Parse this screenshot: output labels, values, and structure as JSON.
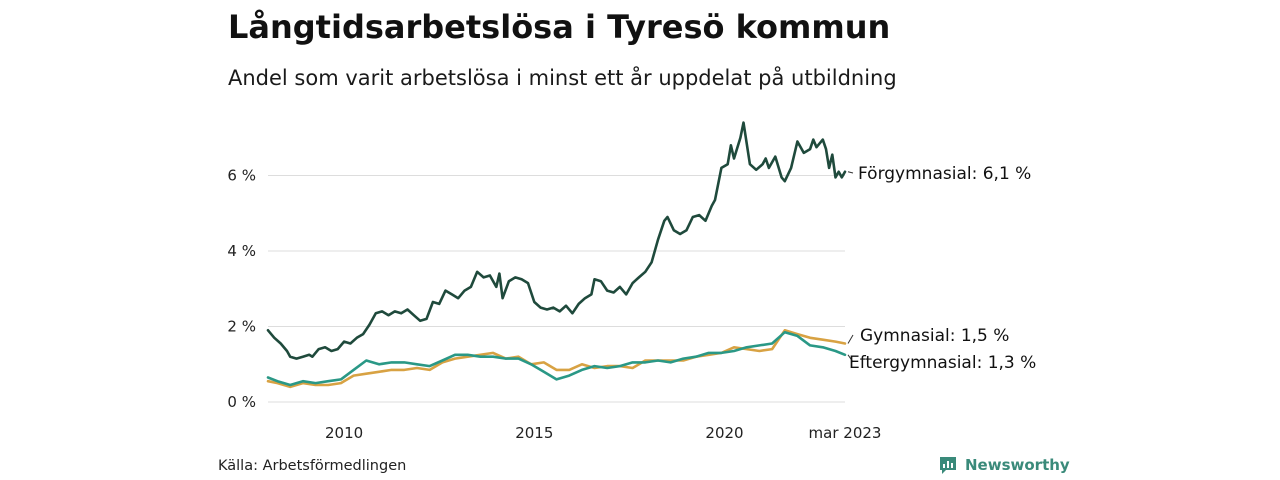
{
  "title": "Långtidsarbetslösa i Tyresö kommun",
  "subtitle": "Andel som varit arbetslösa i minst ett år uppdelat på utbildning",
  "source": "Källa: Arbetsförmedlingen",
  "brand": "Newsworthy",
  "colors": {
    "forgymnasial": "#1f4a3c",
    "gymnasial": "#d8a243",
    "eftergymnasial": "#2a9886",
    "grid": "#dddddd",
    "brand": "#3a8a7a"
  },
  "chart_data": {
    "type": "line",
    "title": "Långtidsarbetslösa i Tyresö kommun",
    "subtitle": "Andel som varit arbetslösa i minst ett år uppdelat på utbildning",
    "xlabel": "",
    "ylabel": "",
    "x_range": [
      "2008-01",
      "2023-03"
    ],
    "ylim": [
      0,
      7.4
    ],
    "y_ticks": [
      0,
      2,
      4,
      6
    ],
    "y_tick_labels": [
      "0 %",
      "2 %",
      "4 %",
      "6 %"
    ],
    "x_ticks": [
      "2010-01",
      "2015-01",
      "2020-01",
      "2023-03"
    ],
    "x_tick_labels": [
      "2010",
      "2015",
      "2020",
      "mar 2023"
    ],
    "grid": "horizontal",
    "legend": "end labels",
    "series": [
      {
        "name": "Förgymnasial",
        "label": "Förgymnasial: 6,1 %",
        "color": "#1f4a3c",
        "points": [
          [
            "2008-01",
            1.9
          ],
          [
            "2008-03",
            1.7
          ],
          [
            "2008-05",
            1.55
          ],
          [
            "2008-07",
            1.35
          ],
          [
            "2008-08",
            1.2
          ],
          [
            "2008-10",
            1.15
          ],
          [
            "2008-12",
            1.2
          ],
          [
            "2009-02",
            1.25
          ],
          [
            "2009-03",
            1.2
          ],
          [
            "2009-05",
            1.4
          ],
          [
            "2009-07",
            1.45
          ],
          [
            "2009-09",
            1.35
          ],
          [
            "2009-11",
            1.4
          ],
          [
            "2010-01",
            1.6
          ],
          [
            "2010-03",
            1.55
          ],
          [
            "2010-05",
            1.7
          ],
          [
            "2010-07",
            1.8
          ],
          [
            "2010-09",
            2.05
          ],
          [
            "2010-11",
            2.35
          ],
          [
            "2011-01",
            2.4
          ],
          [
            "2011-03",
            2.3
          ],
          [
            "2011-05",
            2.4
          ],
          [
            "2011-07",
            2.35
          ],
          [
            "2011-09",
            2.45
          ],
          [
            "2011-11",
            2.3
          ],
          [
            "2012-01",
            2.15
          ],
          [
            "2012-03",
            2.2
          ],
          [
            "2012-05",
            2.65
          ],
          [
            "2012-07",
            2.6
          ],
          [
            "2012-09",
            2.95
          ],
          [
            "2012-11",
            2.85
          ],
          [
            "2013-01",
            2.75
          ],
          [
            "2013-03",
            2.95
          ],
          [
            "2013-05",
            3.05
          ],
          [
            "2013-07",
            3.45
          ],
          [
            "2013-09",
            3.3
          ],
          [
            "2013-11",
            3.35
          ],
          [
            "2014-01",
            3.05
          ],
          [
            "2014-02",
            3.4
          ],
          [
            "2014-03",
            2.75
          ],
          [
            "2014-05",
            3.2
          ],
          [
            "2014-07",
            3.3
          ],
          [
            "2014-09",
            3.25
          ],
          [
            "2014-11",
            3.15
          ],
          [
            "2015-01",
            2.65
          ],
          [
            "2015-03",
            2.5
          ],
          [
            "2015-05",
            2.45
          ],
          [
            "2015-07",
            2.5
          ],
          [
            "2015-09",
            2.4
          ],
          [
            "2015-11",
            2.55
          ],
          [
            "2016-01",
            2.35
          ],
          [
            "2016-03",
            2.6
          ],
          [
            "2016-05",
            2.75
          ],
          [
            "2016-07",
            2.85
          ],
          [
            "2016-08",
            3.25
          ],
          [
            "2016-10",
            3.2
          ],
          [
            "2016-12",
            2.95
          ],
          [
            "2017-02",
            2.9
          ],
          [
            "2017-04",
            3.05
          ],
          [
            "2017-06",
            2.85
          ],
          [
            "2017-08",
            3.15
          ],
          [
            "2017-10",
            3.3
          ],
          [
            "2017-12",
            3.45
          ],
          [
            "2018-02",
            3.7
          ],
          [
            "2018-04",
            4.3
          ],
          [
            "2018-06",
            4.8
          ],
          [
            "2018-07",
            4.9
          ],
          [
            "2018-09",
            4.55
          ],
          [
            "2018-11",
            4.45
          ],
          [
            "2019-01",
            4.55
          ],
          [
            "2019-03",
            4.9
          ],
          [
            "2019-05",
            4.95
          ],
          [
            "2019-07",
            4.8
          ],
          [
            "2019-09",
            5.2
          ],
          [
            "2019-10",
            5.35
          ],
          [
            "2019-12",
            6.2
          ],
          [
            "2020-02",
            6.3
          ],
          [
            "2020-03",
            6.8
          ],
          [
            "2020-04",
            6.45
          ],
          [
            "2020-06",
            7.0
          ],
          [
            "2020-07",
            7.4
          ],
          [
            "2020-09",
            6.3
          ],
          [
            "2020-11",
            6.15
          ],
          [
            "2021-01",
            6.3
          ],
          [
            "2021-02",
            6.45
          ],
          [
            "2021-03",
            6.2
          ],
          [
            "2021-05",
            6.5
          ],
          [
            "2021-07",
            5.95
          ],
          [
            "2021-08",
            5.85
          ],
          [
            "2021-10",
            6.2
          ],
          [
            "2021-12",
            6.9
          ],
          [
            "2022-02",
            6.6
          ],
          [
            "2022-04",
            6.7
          ],
          [
            "2022-05",
            6.95
          ],
          [
            "2022-06",
            6.75
          ],
          [
            "2022-08",
            6.95
          ],
          [
            "2022-09",
            6.7
          ],
          [
            "2022-10",
            6.2
          ],
          [
            "2022-11",
            6.55
          ],
          [
            "2022-12",
            5.95
          ],
          [
            "2023-01",
            6.1
          ],
          [
            "2023-02",
            5.95
          ],
          [
            "2023-03",
            6.1
          ]
        ]
      },
      {
        "name": "Gymnasial",
        "label": "Gymnasial: 1,5 %",
        "color": "#d8a243",
        "points": [
          [
            "2008-01",
            0.55
          ],
          [
            "2008-04",
            0.5
          ],
          [
            "2008-08",
            0.4
          ],
          [
            "2008-12",
            0.5
          ],
          [
            "2009-04",
            0.45
          ],
          [
            "2009-08",
            0.45
          ],
          [
            "2009-12",
            0.5
          ],
          [
            "2010-04",
            0.7
          ],
          [
            "2010-08",
            0.75
          ],
          [
            "2010-12",
            0.8
          ],
          [
            "2011-04",
            0.85
          ],
          [
            "2011-08",
            0.85
          ],
          [
            "2011-12",
            0.9
          ],
          [
            "2012-04",
            0.85
          ],
          [
            "2012-08",
            1.05
          ],
          [
            "2012-12",
            1.15
          ],
          [
            "2013-04",
            1.2
          ],
          [
            "2013-08",
            1.25
          ],
          [
            "2013-12",
            1.3
          ],
          [
            "2014-04",
            1.15
          ],
          [
            "2014-08",
            1.2
          ],
          [
            "2014-12",
            1.0
          ],
          [
            "2015-04",
            1.05
          ],
          [
            "2015-08",
            0.85
          ],
          [
            "2015-12",
            0.85
          ],
          [
            "2016-04",
            1.0
          ],
          [
            "2016-08",
            0.9
          ],
          [
            "2016-12",
            0.95
          ],
          [
            "2017-04",
            0.95
          ],
          [
            "2017-08",
            0.9
          ],
          [
            "2017-12",
            1.1
          ],
          [
            "2018-04",
            1.1
          ],
          [
            "2018-08",
            1.1
          ],
          [
            "2018-12",
            1.1
          ],
          [
            "2019-04",
            1.2
          ],
          [
            "2019-08",
            1.25
          ],
          [
            "2019-12",
            1.3
          ],
          [
            "2020-04",
            1.45
          ],
          [
            "2020-08",
            1.4
          ],
          [
            "2020-12",
            1.35
          ],
          [
            "2021-04",
            1.4
          ],
          [
            "2021-08",
            1.9
          ],
          [
            "2021-12",
            1.8
          ],
          [
            "2022-04",
            1.7
          ],
          [
            "2022-08",
            1.65
          ],
          [
            "2022-12",
            1.6
          ],
          [
            "2023-03",
            1.55
          ]
        ]
      },
      {
        "name": "Eftergymnasial",
        "label": "Eftergymnasial: 1,3 %",
        "color": "#2a9886",
        "points": [
          [
            "2008-01",
            0.65
          ],
          [
            "2008-04",
            0.55
          ],
          [
            "2008-08",
            0.45
          ],
          [
            "2008-12",
            0.55
          ],
          [
            "2009-04",
            0.5
          ],
          [
            "2009-08",
            0.55
          ],
          [
            "2009-12",
            0.6
          ],
          [
            "2010-04",
            0.85
          ],
          [
            "2010-08",
            1.1
          ],
          [
            "2010-12",
            1.0
          ],
          [
            "2011-04",
            1.05
          ],
          [
            "2011-08",
            1.05
          ],
          [
            "2011-12",
            1.0
          ],
          [
            "2012-04",
            0.95
          ],
          [
            "2012-08",
            1.1
          ],
          [
            "2012-12",
            1.25
          ],
          [
            "2013-04",
            1.25
          ],
          [
            "2013-08",
            1.2
          ],
          [
            "2013-12",
            1.2
          ],
          [
            "2014-04",
            1.15
          ],
          [
            "2014-08",
            1.15
          ],
          [
            "2014-12",
            1.0
          ],
          [
            "2015-04",
            0.8
          ],
          [
            "2015-08",
            0.6
          ],
          [
            "2015-12",
            0.7
          ],
          [
            "2016-04",
            0.85
          ],
          [
            "2016-08",
            0.95
          ],
          [
            "2016-12",
            0.9
          ],
          [
            "2017-04",
            0.95
          ],
          [
            "2017-08",
            1.05
          ],
          [
            "2017-12",
            1.05
          ],
          [
            "2018-04",
            1.1
          ],
          [
            "2018-08",
            1.05
          ],
          [
            "2018-12",
            1.15
          ],
          [
            "2019-04",
            1.2
          ],
          [
            "2019-08",
            1.3
          ],
          [
            "2019-12",
            1.3
          ],
          [
            "2020-04",
            1.35
          ],
          [
            "2020-08",
            1.45
          ],
          [
            "2020-12",
            1.5
          ],
          [
            "2021-04",
            1.55
          ],
          [
            "2021-08",
            1.85
          ],
          [
            "2021-12",
            1.75
          ],
          [
            "2022-04",
            1.5
          ],
          [
            "2022-08",
            1.45
          ],
          [
            "2022-12",
            1.35
          ],
          [
            "2023-03",
            1.25
          ]
        ]
      }
    ]
  }
}
